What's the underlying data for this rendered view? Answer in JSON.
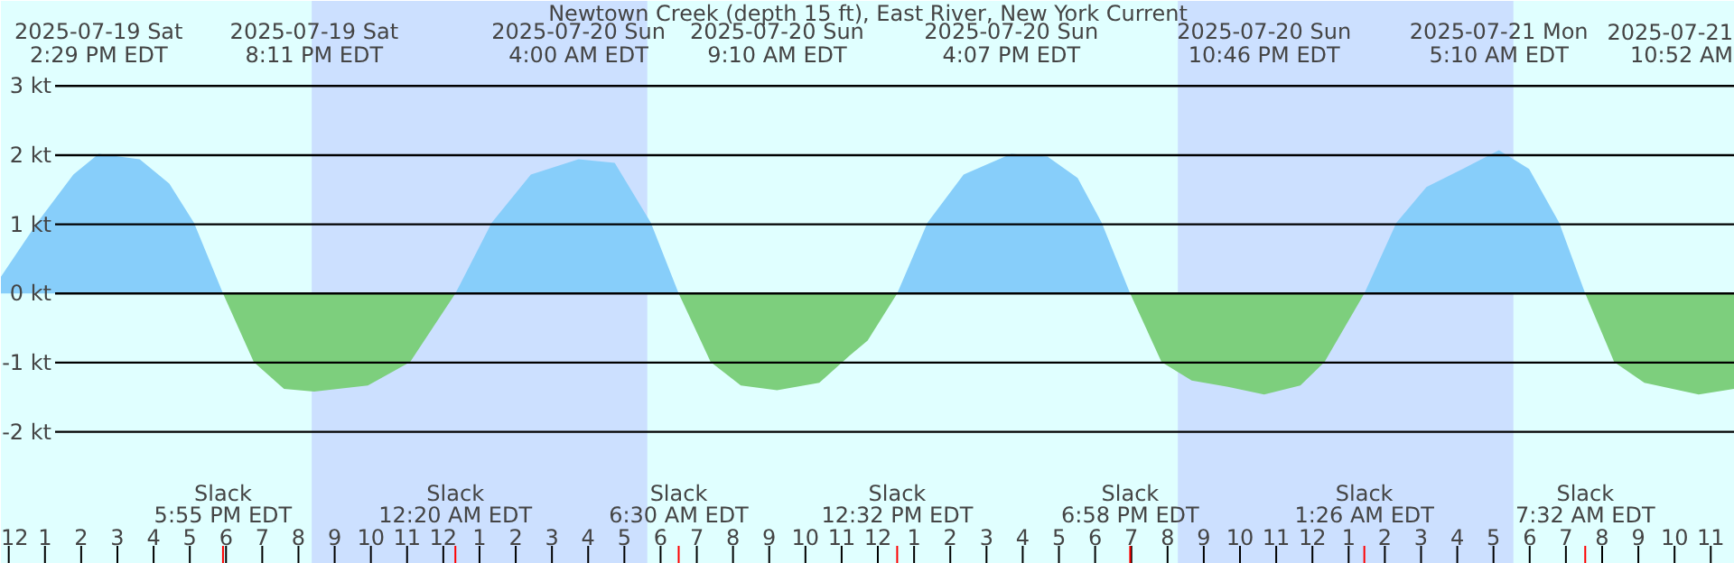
{
  "chart_data": {
    "type": "area",
    "title": "Newtown Creek (depth 15 ft), East River, New York Current",
    "xlim": [
      "2025-07-19T11:47",
      "2025-07-21T11:40"
    ],
    "ylim": [
      -3.91,
      4.23
    ],
    "xticks": [
      {
        "value": "2025-07-19T12:00",
        "label": "12"
      },
      {
        "value": "2025-07-19T13:00",
        "label": "1"
      },
      {
        "value": "2025-07-19T14:00",
        "label": "2"
      },
      {
        "value": "2025-07-19T15:00",
        "label": "3"
      },
      {
        "value": "2025-07-19T16:00",
        "label": "4"
      },
      {
        "value": "2025-07-19T17:00",
        "label": "5"
      },
      {
        "value": "2025-07-19T18:00",
        "label": "6"
      },
      {
        "value": "2025-07-19T19:00",
        "label": "7"
      },
      {
        "value": "2025-07-19T20:00",
        "label": "8"
      },
      {
        "value": "2025-07-19T21:00",
        "label": "9"
      },
      {
        "value": "2025-07-19T22:00",
        "label": "10"
      },
      {
        "value": "2025-07-19T23:00",
        "label": "11"
      },
      {
        "value": "2025-07-20T00:00",
        "label": "12"
      },
      {
        "value": "2025-07-20T01:00",
        "label": "1"
      },
      {
        "value": "2025-07-20T02:00",
        "label": "2"
      },
      {
        "value": "2025-07-20T03:00",
        "label": "3"
      },
      {
        "value": "2025-07-20T04:00",
        "label": "4"
      },
      {
        "value": "2025-07-20T05:00",
        "label": "5"
      },
      {
        "value": "2025-07-20T06:00",
        "label": "6"
      },
      {
        "value": "2025-07-20T07:00",
        "label": "7"
      },
      {
        "value": "2025-07-20T08:00",
        "label": "8"
      },
      {
        "value": "2025-07-20T09:00",
        "label": "9"
      },
      {
        "value": "2025-07-20T10:00",
        "label": "10"
      },
      {
        "value": "2025-07-20T11:00",
        "label": "11"
      },
      {
        "value": "2025-07-20T12:00",
        "label": "12"
      },
      {
        "value": "2025-07-20T13:00",
        "label": "1"
      },
      {
        "value": "2025-07-20T14:00",
        "label": "2"
      },
      {
        "value": "2025-07-20T15:00",
        "label": "3"
      },
      {
        "value": "2025-07-20T16:00",
        "label": "4"
      },
      {
        "value": "2025-07-20T17:00",
        "label": "5"
      },
      {
        "value": "2025-07-20T18:00",
        "label": "6"
      },
      {
        "value": "2025-07-20T19:00",
        "label": "7"
      },
      {
        "value": "2025-07-20T20:00",
        "label": "8"
      },
      {
        "value": "2025-07-20T21:00",
        "label": "9"
      },
      {
        "value": "2025-07-20T22:00",
        "label": "10"
      },
      {
        "value": "2025-07-20T23:00",
        "label": "11"
      },
      {
        "value": "2025-07-21T00:00",
        "label": "12"
      },
      {
        "value": "2025-07-21T01:00",
        "label": "1"
      },
      {
        "value": "2025-07-21T02:00",
        "label": "2"
      },
      {
        "value": "2025-07-21T03:00",
        "label": "3"
      },
      {
        "value": "2025-07-21T04:00",
        "label": "4"
      },
      {
        "value": "2025-07-21T05:00",
        "label": "5"
      },
      {
        "value": "2025-07-21T06:00",
        "label": "6"
      },
      {
        "value": "2025-07-21T07:00",
        "label": "7"
      },
      {
        "value": "2025-07-21T08:00",
        "label": "8"
      },
      {
        "value": "2025-07-21T09:00",
        "label": "9"
      },
      {
        "value": "2025-07-21T10:00",
        "label": "10"
      },
      {
        "value": "2025-07-21T11:00",
        "label": "11"
      }
    ],
    "yticks": [
      {
        "value": 3,
        "label": "3 kt"
      },
      {
        "value": 2,
        "label": "2 kt"
      },
      {
        "value": 1,
        "label": "1 kt"
      },
      {
        "value": 0,
        "label": "0 kt"
      },
      {
        "value": -1,
        "label": "-1 kt"
      },
      {
        "value": -2,
        "label": "-2 kt"
      }
    ],
    "grid": "y",
    "bands": [
      {
        "axis": "x",
        "from": "2025-07-19T20:22",
        "to": "2025-07-20T05:38",
        "color": "#cce0ff"
      },
      {
        "axis": "x",
        "from": "2025-07-20T20:17",
        "to": "2025-07-21T05:33",
        "color": "#cce0ff"
      }
    ],
    "series": [
      {
        "color": "#87cefa",
        "x": [
          "2025-07-19T11:47",
          "2025-07-19T12:47",
          "2025-07-19T13:47",
          "2025-07-19T14:29",
          "2025-07-19T15:37",
          "2025-07-19T16:26",
          "2025-07-19T17:07",
          "2025-07-19T17:55",
          null,
          "2025-07-20T00:20",
          "2025-07-20T01:20",
          "2025-07-20T02:25",
          "2025-07-20T03:44",
          "2025-07-20T04:44",
          "2025-07-20T05:44",
          "2025-07-20T06:30",
          null,
          "2025-07-20T12:32",
          "2025-07-20T13:22",
          "2025-07-20T14:22",
          "2025-07-20T15:41",
          "2025-07-20T16:41",
          "2025-07-20T17:31",
          "2025-07-20T18:11",
          "2025-07-20T18:58",
          null,
          "2025-07-21T01:26",
          "2025-07-21T02:19",
          "2025-07-21T03:09",
          "2025-07-21T04:09",
          "2025-07-21T05:09",
          "2025-07-21T05:59",
          "2025-07-21T06:49",
          "2025-07-21T07:32"
        ],
        "values": [
          0.24,
          1.02,
          1.72,
          2.02,
          1.94,
          1.59,
          1.02,
          0,
          null,
          0,
          1.02,
          1.72,
          1.94,
          1.89,
          1.02,
          0,
          null,
          0,
          1.02,
          1.72,
          2.02,
          1.98,
          1.67,
          1.02,
          0,
          null,
          0,
          1.02,
          1.54,
          1.8,
          2.07,
          1.8,
          1.02,
          0
        ]
      },
      {
        "color": "#7dcf7d",
        "x": [
          "2025-07-19T17:55",
          "2025-07-19T18:46",
          "2025-07-19T19:36",
          "2025-07-19T20:26",
          "2025-07-19T21:55",
          "2025-07-19T23:05",
          "2025-07-20T00:20",
          null,
          "2025-07-20T06:30",
          "2025-07-20T07:23",
          "2025-07-20T08:13",
          "2025-07-20T09:13",
          "2025-07-20T10:23",
          "2025-07-20T11:13",
          "2025-07-20T11:43",
          "2025-07-20T12:32",
          null,
          "2025-07-20T18:58",
          "2025-07-20T19:50",
          "2025-07-20T20:40",
          "2025-07-20T21:40",
          "2025-07-20T22:40",
          "2025-07-20T23:40",
          "2025-07-21T00:20",
          "2025-07-21T01:26",
          null,
          "2025-07-21T07:32",
          "2025-07-21T08:20",
          "2025-07-21T09:10",
          "2025-07-21T10:40",
          "2025-07-21T11:39"
        ],
        "values": [
          0,
          -0.99,
          -1.38,
          -1.42,
          -1.33,
          -0.99,
          0,
          null,
          0,
          -0.99,
          -1.33,
          -1.4,
          -1.29,
          -0.9,
          -0.68,
          0,
          null,
          0,
          -0.99,
          -1.26,
          -1.35,
          -1.46,
          -1.33,
          -0.99,
          0,
          null,
          0,
          -0.99,
          -1.29,
          -1.46,
          -1.38
        ]
      }
    ],
    "annotations": [
      "2025-07-19 Sat\n2:29 PM EDT",
      "2025-07-19 Sat\n8:11 PM EDT",
      "2025-07-20 Sun\n4:00 AM EDT",
      "2025-07-20 Sun\n9:10 AM EDT",
      "2025-07-20 Sun\n4:07 PM EDT",
      "2025-07-20 Sun\n10:46 PM EDT",
      "2025-07-21 Mon\n5:10 AM EDT",
      "2025-07-21\n10:52 AM",
      "Slack\n5:55 PM EDT",
      "Slack\n12:20 AM EDT",
      "Slack\n6:30 AM EDT",
      "Slack\n12:32 PM EDT",
      "Slack\n6:58 PM EDT",
      "Slack\n1:26 AM EDT",
      "Slack\n7:32 AM EDT"
    ]
  }
}
